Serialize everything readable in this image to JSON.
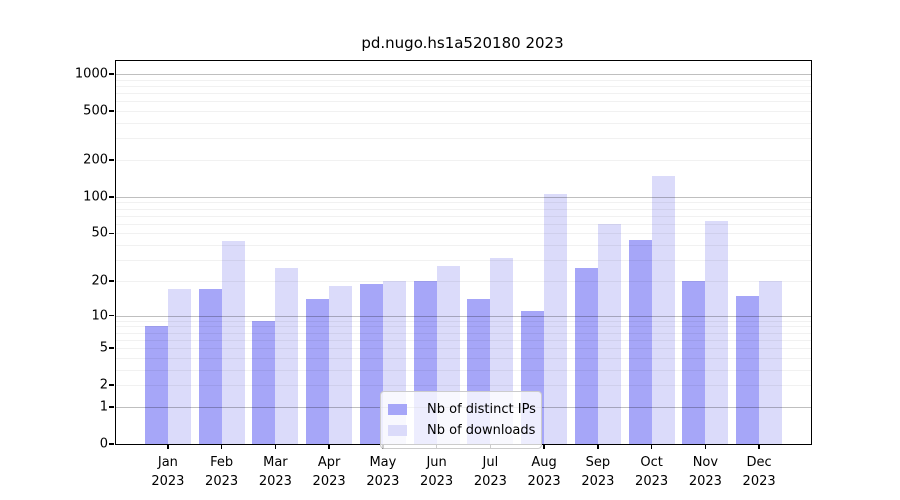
{
  "chart_data": {
    "type": "bar",
    "title": "pd.nugo.hs1a520180 2023",
    "categories": [
      {
        "month": "Jan",
        "year": "2023"
      },
      {
        "month": "Feb",
        "year": "2023"
      },
      {
        "month": "Mar",
        "year": "2023"
      },
      {
        "month": "Apr",
        "year": "2023"
      },
      {
        "month": "May",
        "year": "2023"
      },
      {
        "month": "Jun",
        "year": "2023"
      },
      {
        "month": "Jul",
        "year": "2023"
      },
      {
        "month": "Aug",
        "year": "2023"
      },
      {
        "month": "Sep",
        "year": "2023"
      },
      {
        "month": "Oct",
        "year": "2023"
      },
      {
        "month": "Nov",
        "year": "2023"
      },
      {
        "month": "Dec",
        "year": "2023"
      }
    ],
    "series": [
      {
        "name": "Nb of distinct IPs",
        "color": "#a6a6f8",
        "values": [
          8,
          17,
          9,
          14,
          19,
          20,
          14,
          11,
          26,
          44,
          20,
          15
        ]
      },
      {
        "name": "Nb of downloads",
        "color": "#dbdbfa",
        "values": [
          17,
          43,
          26,
          18,
          20,
          27,
          31,
          105,
          60,
          147,
          63,
          20
        ]
      }
    ],
    "xlabel": "",
    "ylabel": "",
    "yscale": "log1p",
    "ylim": [
      0,
      1275
    ],
    "yticks": [
      0,
      1,
      2,
      5,
      10,
      20,
      50,
      100,
      200,
      500,
      1000
    ],
    "major_gridlines": [
      1,
      10,
      100,
      1000
    ],
    "grid": "horizontal",
    "legend_position": "bottom-center",
    "colors": {
      "axis": "#000000",
      "major_grid": "rgba(0,0,0,0.25)",
      "minor_grid": "rgba(0,0,0,0.055)",
      "background": "#ffffff"
    }
  }
}
